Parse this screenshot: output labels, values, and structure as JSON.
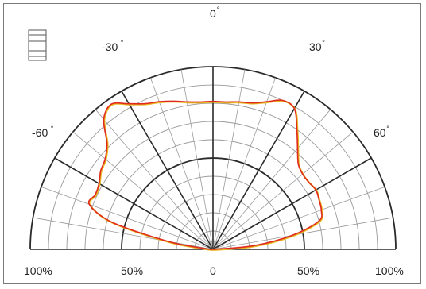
{
  "chart_data": {
    "type": "polar",
    "title": "",
    "angle_labels": [
      {
        "text": "0",
        "angle": 0
      },
      {
        "text": "-30",
        "angle": -30
      },
      {
        "text": "30",
        "angle": 30
      },
      {
        "text": "-60",
        "angle": -60
      },
      {
        "text": "60",
        "angle": 60
      }
    ],
    "degree_symbol": "°",
    "radial_labels": [
      {
        "text": "100%",
        "side": "left",
        "value": 100
      },
      {
        "text": "50%",
        "side": "left",
        "value": 50
      },
      {
        "text": "0",
        "side": "center",
        "value": 0
      },
      {
        "text": "50%",
        "side": "right",
        "value": 50
      },
      {
        "text": "100%",
        "side": "right",
        "value": 100
      }
    ],
    "radial_range": [
      0,
      100
    ],
    "angle_range": [
      -90,
      90
    ],
    "grid": true,
    "series": [
      {
        "color": "#e02a1e",
        "secondary_color": "#e8b820",
        "points": [
          {
            "angle": -90,
            "r": 0
          },
          {
            "angle": -84,
            "r": 5
          },
          {
            "angle": -80,
            "r": 25
          },
          {
            "angle": -75,
            "r": 57
          },
          {
            "angle": -70,
            "r": 72
          },
          {
            "angle": -65,
            "r": 71
          },
          {
            "angle": -60,
            "r": 72
          },
          {
            "angle": -55,
            "r": 75
          },
          {
            "angle": -50,
            "r": 77
          },
          {
            "angle": -45,
            "r": 82
          },
          {
            "angle": -40,
            "r": 93
          },
          {
            "angle": -35,
            "r": 97
          },
          {
            "angle": -30,
            "r": 92
          },
          {
            "angle": -25,
            "r": 88
          },
          {
            "angle": -20,
            "r": 86
          },
          {
            "angle": -15,
            "r": 84
          },
          {
            "angle": -10,
            "r": 82
          },
          {
            "angle": -5,
            "r": 81
          },
          {
            "angle": 0,
            "r": 81
          },
          {
            "angle": 5,
            "r": 81
          },
          {
            "angle": 10,
            "r": 82
          },
          {
            "angle": 15,
            "r": 83
          },
          {
            "angle": 20,
            "r": 86
          },
          {
            "angle": 25,
            "r": 90
          },
          {
            "angle": 30,
            "r": 89
          },
          {
            "angle": 35,
            "r": 80
          },
          {
            "angle": 40,
            "r": 72
          },
          {
            "angle": 45,
            "r": 66
          },
          {
            "angle": 50,
            "r": 64
          },
          {
            "angle": 55,
            "r": 64
          },
          {
            "angle": 60,
            "r": 65
          },
          {
            "angle": 65,
            "r": 64
          },
          {
            "angle": 70,
            "r": 63
          },
          {
            "angle": 75,
            "r": 60
          },
          {
            "angle": 80,
            "r": 44
          },
          {
            "angle": 85,
            "r": 22
          },
          {
            "angle": 90,
            "r": 0
          }
        ]
      }
    ]
  }
}
